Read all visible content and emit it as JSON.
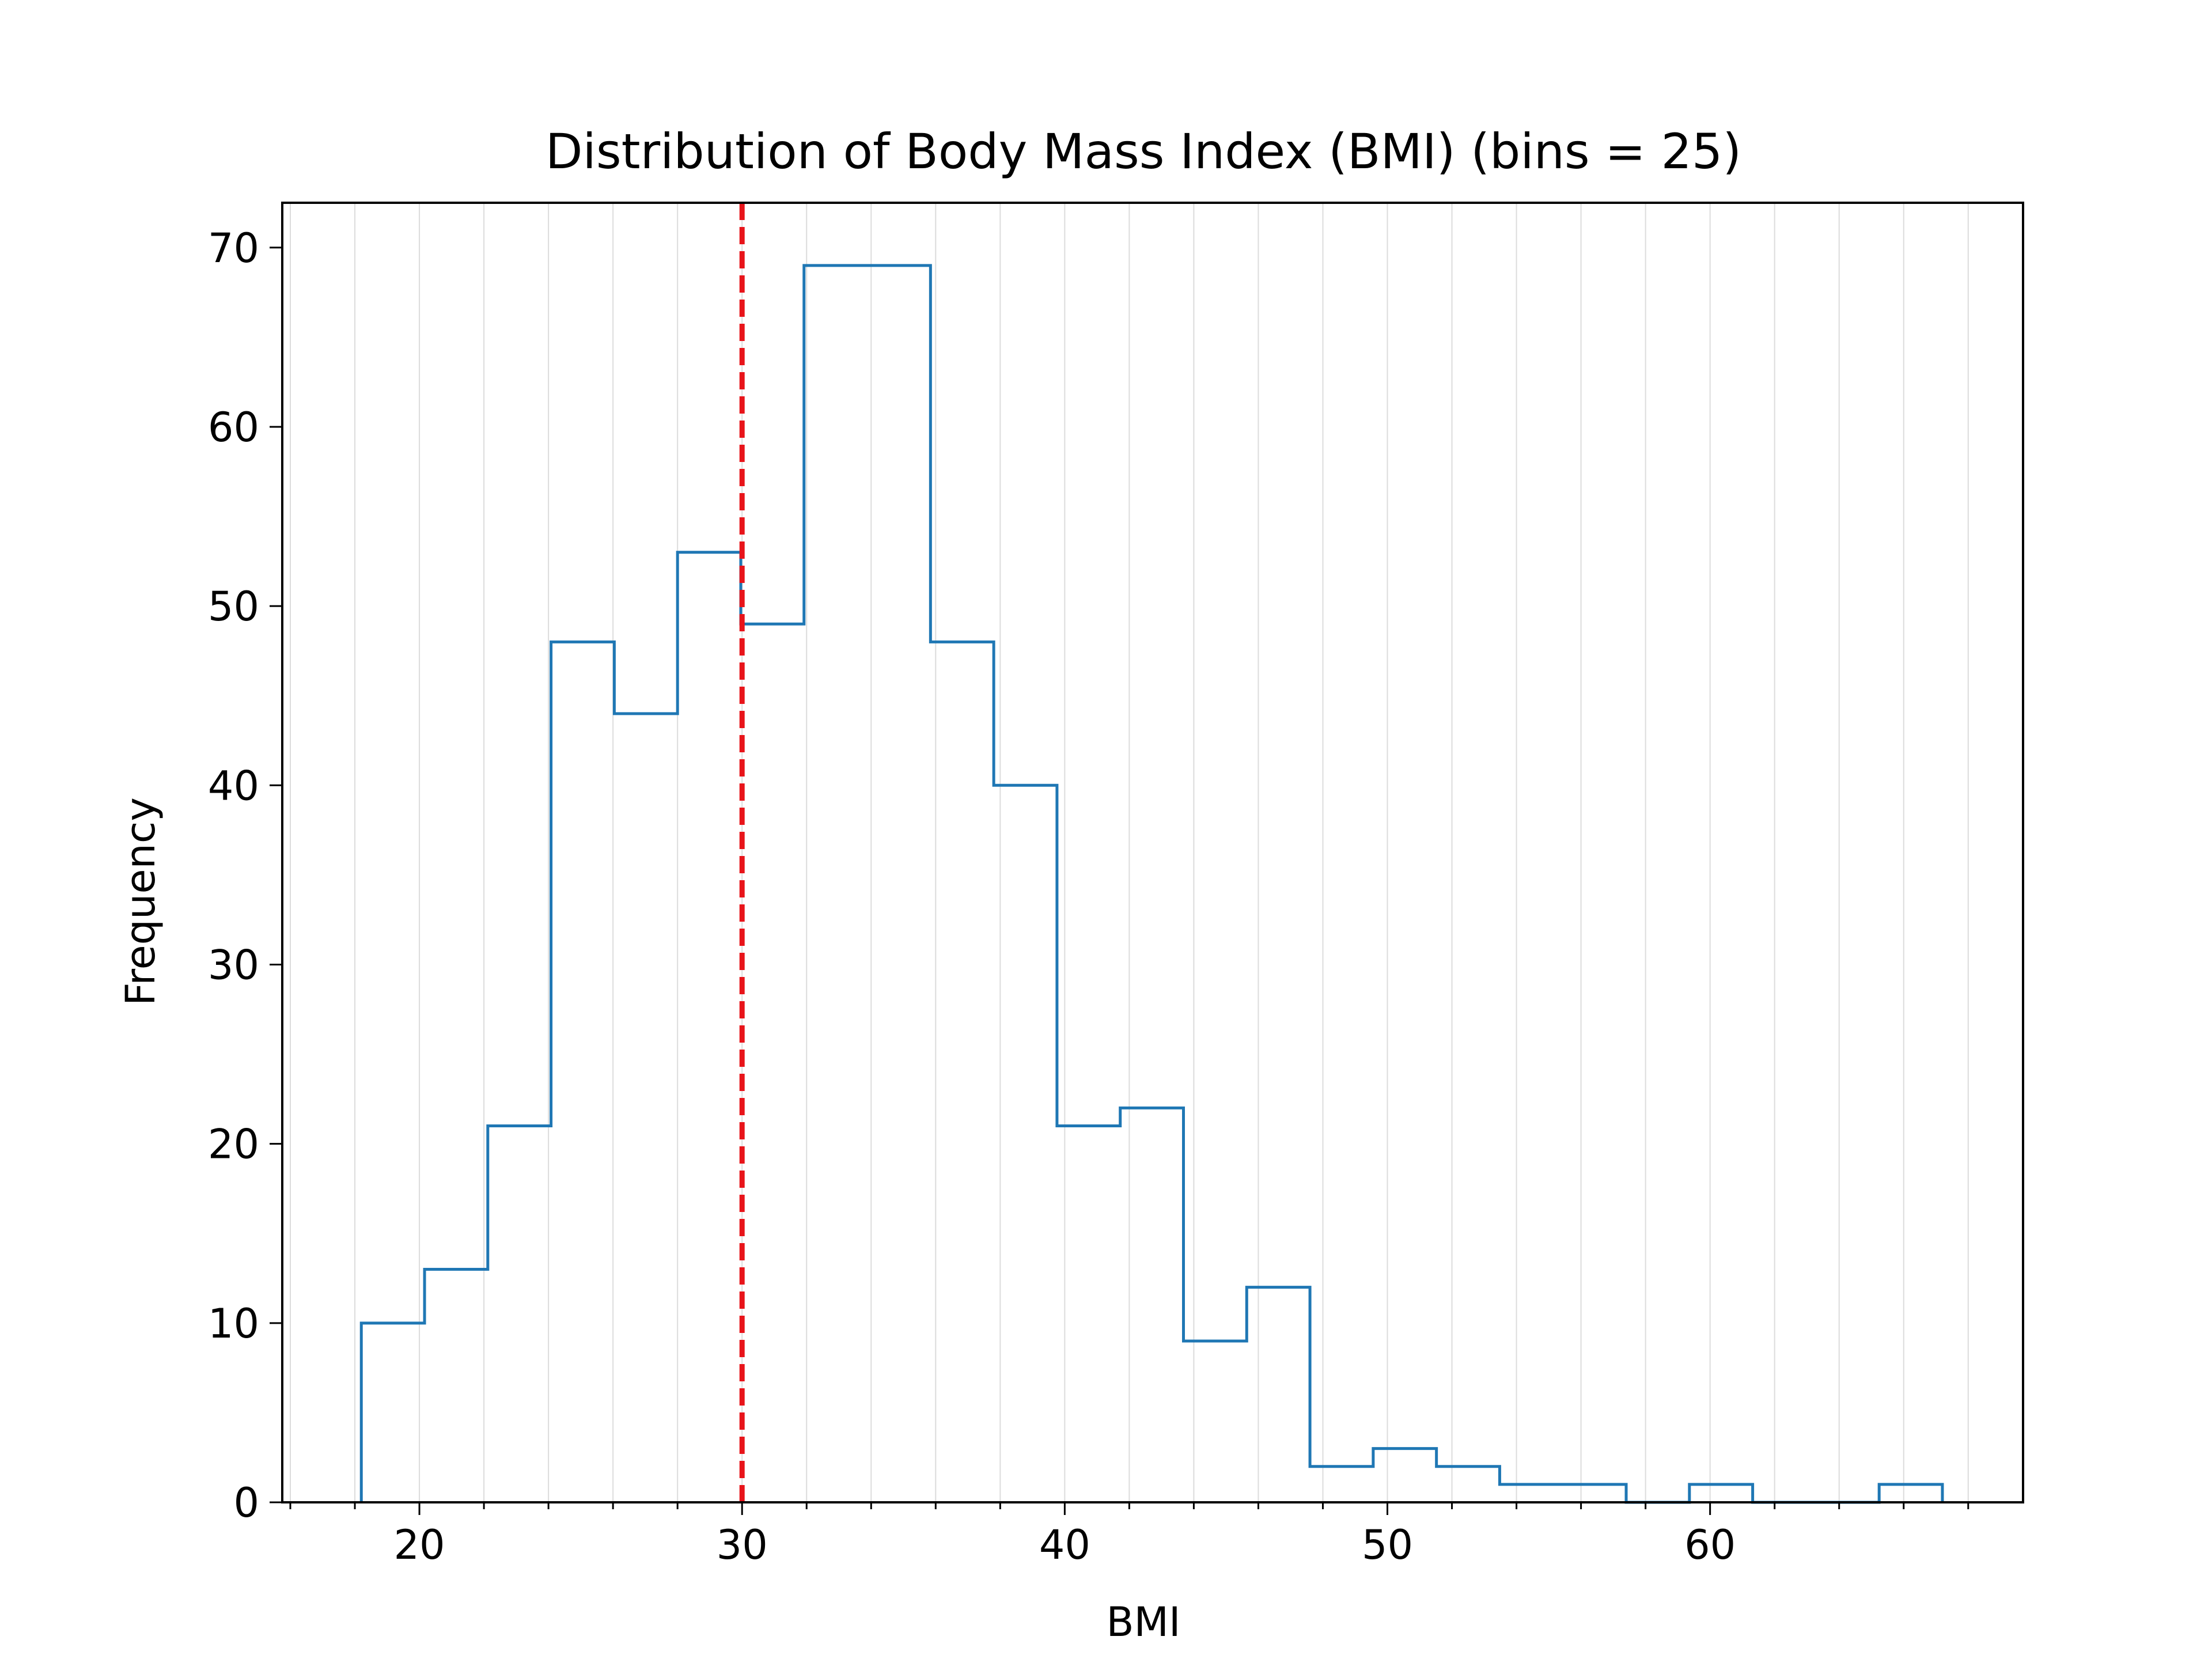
{
  "chart_data": {
    "type": "histogram",
    "title": "Distribution of Body Mass Index (BMI) (bins = 25)",
    "xlabel": "BMI",
    "ylabel": "Frequency",
    "xlim": [
      15.75,
      69.7
    ],
    "ylim": [
      0,
      72.5
    ],
    "x_ticks": [
      20,
      30,
      40,
      50,
      60
    ],
    "y_ticks": [
      0,
      10,
      20,
      30,
      40,
      50,
      60,
      70
    ],
    "x_minor_step": 2,
    "grid": "vertical minor gridlines",
    "series": [
      {
        "style": "step",
        "color": "#1f77b4",
        "bin_edges": [
          18.2,
          20.16,
          22.12,
          24.08,
          26.04,
          28.0,
          29.96,
          31.92,
          33.88,
          35.84,
          37.8,
          39.76,
          41.72,
          43.68,
          45.64,
          47.6,
          49.56,
          51.52,
          53.48,
          55.44,
          57.4,
          59.36,
          61.32,
          63.28,
          65.24,
          67.2
        ],
        "counts": [
          10,
          13,
          21,
          48,
          44,
          53,
          49,
          69,
          69,
          48,
          40,
          21,
          22,
          9,
          12,
          2,
          3,
          2,
          1,
          1,
          0,
          1,
          0,
          0,
          1
        ]
      }
    ],
    "reference_line": {
      "x": 30,
      "color": "#e8141a",
      "style": "dashed"
    }
  }
}
